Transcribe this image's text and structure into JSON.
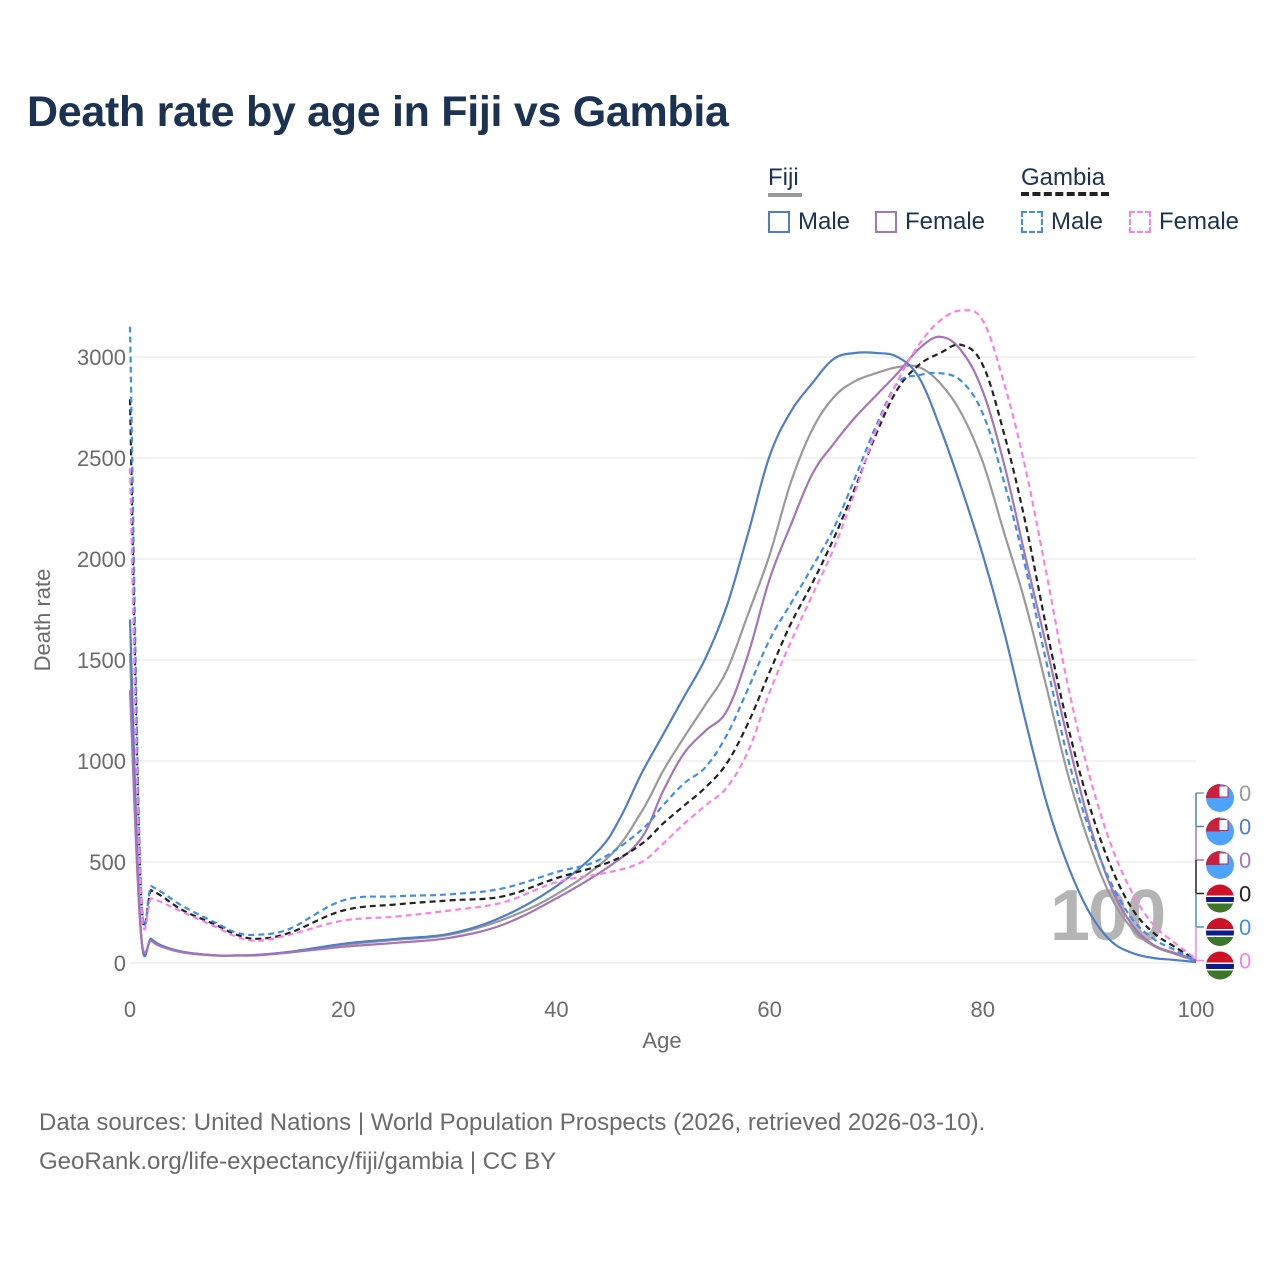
{
  "title": "Death rate by age in Fiji vs Gambia",
  "legend": {
    "groups": [
      {
        "name": "Fiji",
        "line_color": "#9a9a9a",
        "dashed": false,
        "items": [
          {
            "label": "Male",
            "color": "#4f7ec9"
          },
          {
            "label": "Female",
            "color": "#a774b8"
          }
        ]
      },
      {
        "name": "Gambia",
        "line_color": "#222222",
        "dashed": true,
        "items": [
          {
            "label": "Male",
            "color": "#3d8fef"
          },
          {
            "label": "Female",
            "color": "#ff7fe8"
          }
        ]
      }
    ]
  },
  "watermark": "100",
  "end_labels": [
    {
      "value": "0",
      "color": "#9a9a9a",
      "flag": "fiji"
    },
    {
      "value": "0",
      "color": "#4f7ec9",
      "flag": "fiji"
    },
    {
      "value": "0",
      "color": "#a774b8",
      "flag": "fiji"
    },
    {
      "value": "0",
      "color": "#222222",
      "flag": "gambia"
    },
    {
      "value": "0",
      "color": "#3d8fef",
      "flag": "gambia"
    },
    {
      "value": "0",
      "color": "#ff7fe8",
      "flag": "gambia"
    }
  ],
  "footer": {
    "line1": "Data sources: United Nations | World Population Prospects (2026, retrieved 2026-03-10).",
    "line2": "GeoRank.org/life-expectancy/fiji/gambia | CC BY"
  },
  "chart_data": {
    "type": "line",
    "title": "Death rate by age in Fiji vs Gambia",
    "xlabel": "Age",
    "ylabel": "Death rate",
    "xlim": [
      0,
      100
    ],
    "ylim": [
      0,
      3150
    ],
    "xticks": [
      0,
      20,
      40,
      60,
      80,
      100
    ],
    "yticks": [
      0,
      500,
      1000,
      1500,
      2000,
      2500,
      3000
    ],
    "grid": true,
    "series": [
      {
        "name": "Fiji (total)",
        "color": "#9a9a9a",
        "dashed": false,
        "x": [
          0,
          1,
          2,
          3,
          5,
          8,
          10,
          12,
          15,
          20,
          25,
          30,
          35,
          40,
          45,
          48,
          50,
          52,
          54,
          56,
          58,
          60,
          62,
          64,
          66,
          68,
          70,
          72,
          74,
          76,
          78,
          80,
          82,
          84,
          86,
          88,
          90,
          92,
          94,
          96,
          98,
          100
        ],
        "y": [
          1530,
          165,
          115,
          85,
          55,
          38,
          38,
          40,
          55,
          90,
          115,
          140,
          215,
          340,
          530,
          750,
          950,
          1120,
          1280,
          1450,
          1730,
          2020,
          2380,
          2640,
          2800,
          2880,
          2920,
          2950,
          2950,
          2870,
          2720,
          2480,
          2130,
          1780,
          1360,
          930,
          590,
          330,
          170,
          85,
          45,
          10
        ]
      },
      {
        "name": "Fiji Male",
        "color": "#4f7ec9",
        "dashed": false,
        "x": [
          0,
          1,
          2,
          3,
          5,
          8,
          10,
          12,
          15,
          20,
          25,
          30,
          35,
          40,
          44,
          46,
          48,
          50,
          52,
          54,
          56,
          58,
          60,
          62,
          64,
          66,
          68,
          70,
          72,
          74,
          76,
          78,
          80,
          82,
          84,
          86,
          88,
          90,
          92,
          94,
          96,
          98,
          100
        ],
        "y": [
          1700,
          170,
          120,
          85,
          55,
          38,
          37,
          40,
          55,
          95,
          120,
          145,
          230,
          380,
          560,
          720,
          940,
          1130,
          1320,
          1510,
          1770,
          2130,
          2510,
          2730,
          2870,
          2990,
          3020,
          3020,
          3000,
          2900,
          2650,
          2350,
          2020,
          1640,
          1200,
          790,
          480,
          250,
          110,
          50,
          25,
          15,
          5
        ]
      },
      {
        "name": "Fiji Female",
        "color": "#a774b8",
        "dashed": false,
        "x": [
          0,
          1,
          2,
          3,
          5,
          8,
          10,
          12,
          15,
          20,
          25,
          30,
          35,
          40,
          45,
          48,
          50,
          52,
          54,
          56,
          58,
          60,
          62,
          64,
          66,
          68,
          70,
          72,
          74,
          76,
          78,
          80,
          82,
          84,
          86,
          88,
          90,
          92,
          94,
          96,
          98,
          100
        ],
        "y": [
          1350,
          160,
          110,
          80,
          52,
          37,
          37,
          38,
          52,
          80,
          100,
          125,
          190,
          320,
          480,
          620,
          850,
          1040,
          1150,
          1250,
          1530,
          1900,
          2170,
          2420,
          2570,
          2700,
          2810,
          2920,
          3040,
          3100,
          3030,
          2830,
          2470,
          2010,
          1560,
          1100,
          690,
          380,
          190,
          90,
          50,
          15
        ]
      },
      {
        "name": "Gambia (total)",
        "color": "#222222",
        "dashed": true,
        "x": [
          0,
          1,
          2,
          3,
          5,
          8,
          10,
          12,
          15,
          20,
          25,
          30,
          35,
          40,
          45,
          48,
          50,
          52,
          54,
          56,
          58,
          60,
          62,
          64,
          66,
          68,
          70,
          72,
          74,
          76,
          78,
          80,
          82,
          84,
          86,
          88,
          90,
          92,
          94,
          96,
          98,
          100
        ],
        "y": [
          2790,
          380,
          360,
          330,
          260,
          190,
          140,
          120,
          150,
          260,
          290,
          310,
          330,
          420,
          500,
          590,
          690,
          780,
          870,
          990,
          1190,
          1440,
          1680,
          1880,
          2100,
          2350,
          2620,
          2840,
          2960,
          3020,
          3060,
          2960,
          2620,
          2180,
          1650,
          1170,
          780,
          480,
          270,
          150,
          80,
          15
        ]
      },
      {
        "name": "Gambia Male",
        "color": "#3d8fef",
        "dashed": true,
        "x": [
          0,
          1,
          2,
          3,
          5,
          8,
          10,
          12,
          15,
          20,
          25,
          30,
          35,
          40,
          44,
          48,
          50,
          52,
          54,
          56,
          58,
          60,
          62,
          64,
          66,
          68,
          70,
          72,
          74,
          76,
          78,
          80,
          82,
          84,
          86,
          88,
          90,
          92,
          94,
          96,
          98,
          100
        ],
        "y": [
          3150,
          410,
          380,
          350,
          280,
          200,
          150,
          140,
          170,
          310,
          330,
          340,
          370,
          450,
          510,
          660,
          780,
          890,
          970,
          1130,
          1360,
          1600,
          1780,
          1960,
          2150,
          2400,
          2660,
          2870,
          2910,
          2920,
          2880,
          2720,
          2380,
          1960,
          1480,
          1010,
          660,
          400,
          220,
          120,
          65,
          10
        ]
      },
      {
        "name": "Gambia Female",
        "color": "#ff7fe8",
        "dashed": true,
        "x": [
          0,
          1,
          2,
          3,
          5,
          8,
          10,
          12,
          15,
          20,
          25,
          30,
          35,
          40,
          45,
          48,
          50,
          52,
          54,
          56,
          58,
          60,
          62,
          64,
          66,
          68,
          70,
          72,
          74,
          76,
          78,
          80,
          82,
          84,
          86,
          88,
          90,
          92,
          94,
          96,
          98,
          100
        ],
        "y": [
          2450,
          340,
          320,
          300,
          250,
          180,
          130,
          110,
          140,
          210,
          230,
          260,
          300,
          400,
          450,
          500,
          590,
          690,
          780,
          870,
          1050,
          1340,
          1590,
          1820,
          2050,
          2330,
          2640,
          2880,
          3060,
          3180,
          3230,
          3180,
          2870,
          2450,
          1920,
          1370,
          930,
          590,
          350,
          190,
          100,
          20
        ]
      }
    ]
  }
}
